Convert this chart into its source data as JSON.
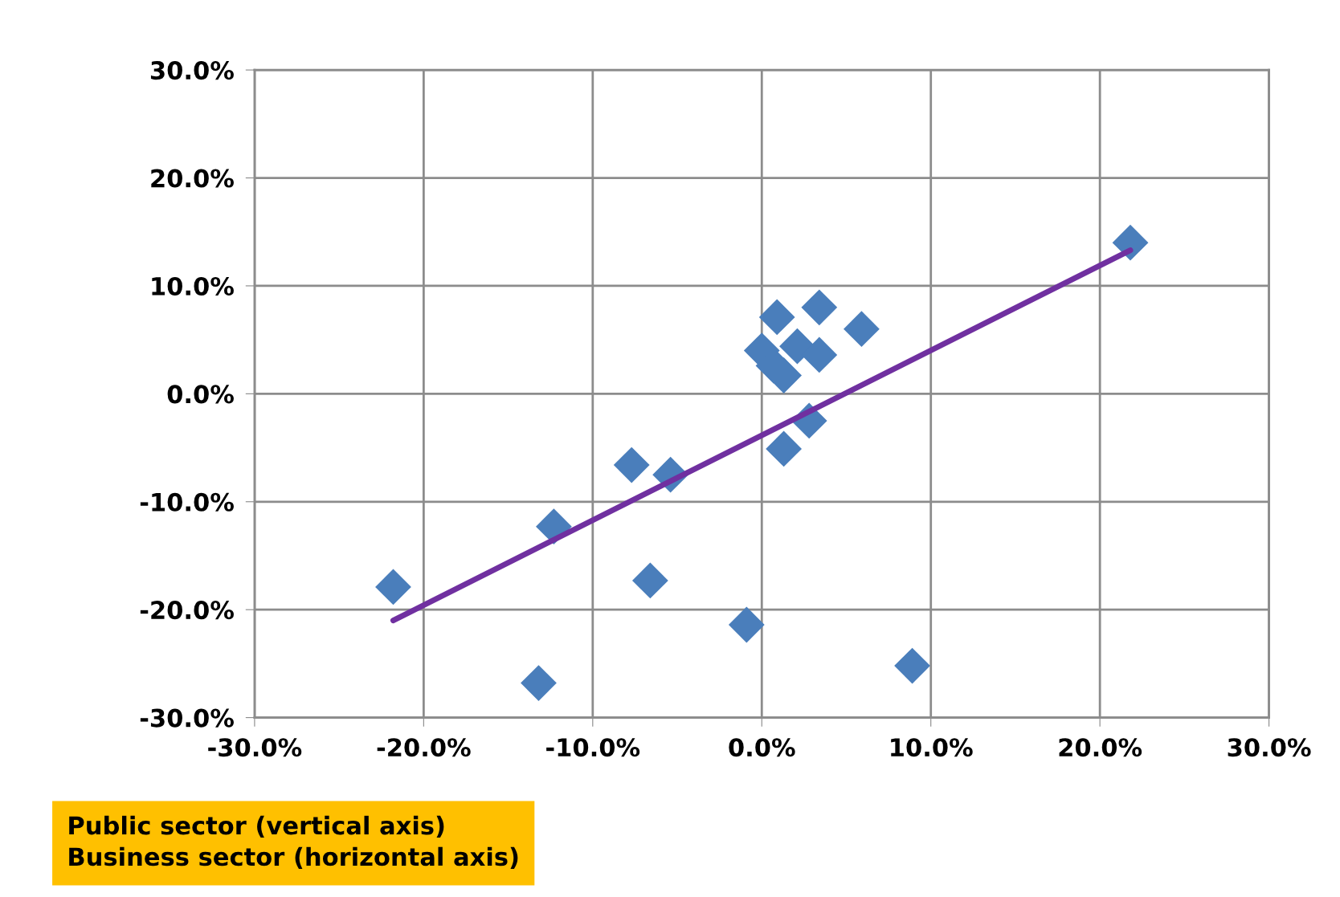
{
  "chart_data": {
    "type": "scatter",
    "series": [
      {
        "color": "#4a7ebb",
        "marker": "diamond",
        "x": [
          -21.8,
          -13.2,
          -12.3,
          -7.7,
          -6.6,
          -5.4,
          -0.9,
          8.9,
          21.8,
          0.9,
          3.4,
          5.9,
          0.0,
          2.1,
          3.4,
          0.7,
          1.3,
          2.8,
          1.3
        ],
        "values": [
          -17.9,
          -26.8,
          -12.3,
          -6.6,
          -17.3,
          -7.5,
          -21.4,
          -25.2,
          14.0,
          7.1,
          8.0,
          6.0,
          4.0,
          4.4,
          3.6,
          2.6,
          1.7,
          -2.5,
          -5.1
        ]
      },
      {
        "type": "line",
        "color": "#7030a0",
        "marker": "none",
        "line_style": "solid",
        "x": [
          -21.8,
          21.8
        ],
        "values": [
          -21.0,
          13.3
        ]
      }
    ],
    "xlim": [
      -30,
      30
    ],
    "ylim": [
      -30,
      30
    ],
    "xticks": [
      {
        "value": -30,
        "label": "-30.0%"
      },
      {
        "value": -20,
        "label": "-20.0%"
      },
      {
        "value": -10,
        "label": "-10.0%"
      },
      {
        "value": 0,
        "label": "0.0%"
      },
      {
        "value": 10,
        "label": "10.0%"
      },
      {
        "value": 20,
        "label": "20.0%"
      },
      {
        "value": 30,
        "label": "30.0%"
      }
    ],
    "yticks": [
      {
        "value": -30,
        "label": "-30.0%"
      },
      {
        "value": -20,
        "label": "-20.0%"
      },
      {
        "value": -10,
        "label": "-10.0%"
      },
      {
        "value": 0,
        "label": "0.0%"
      },
      {
        "value": 10,
        "label": "10.0%"
      },
      {
        "value": 20,
        "label": "20.0%"
      },
      {
        "value": 30,
        "label": "30.0%"
      }
    ],
    "grid": true,
    "annotations": [
      "Public sector (vertical axis)\nBusiness sector (horizontal axis)"
    ]
  }
}
